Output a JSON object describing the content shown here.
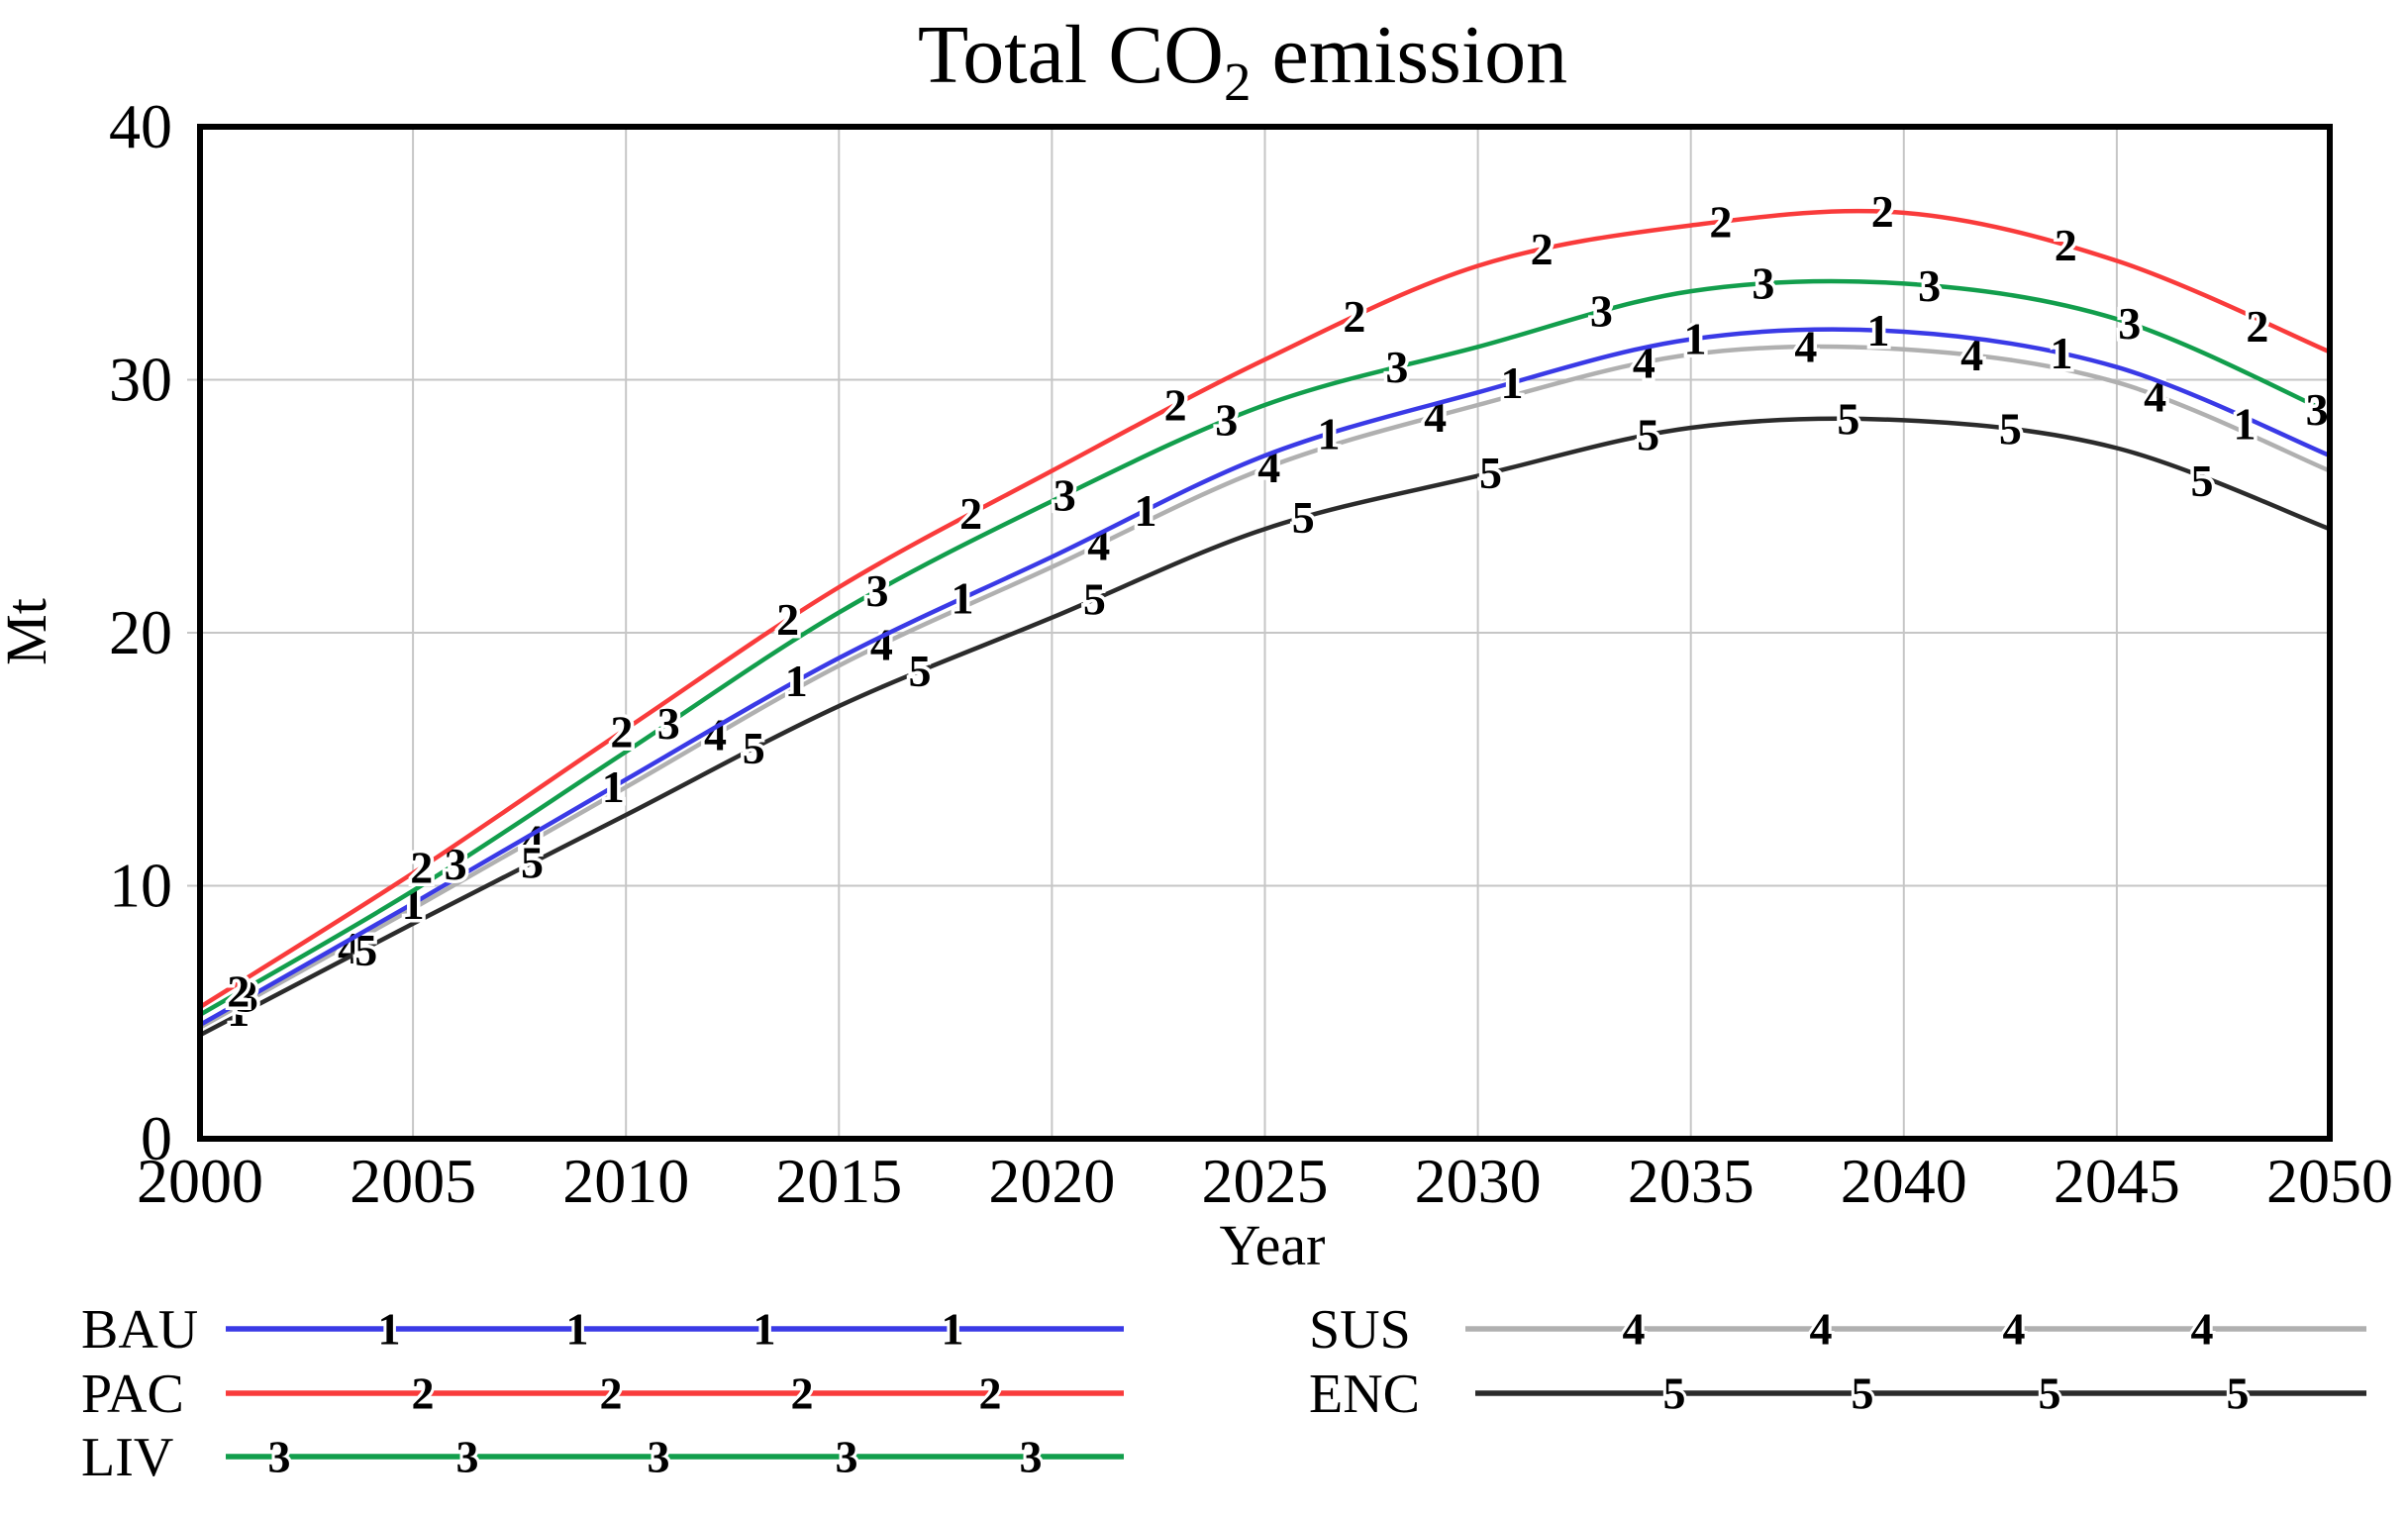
{
  "title": {
    "prefix": "Total CO",
    "sub": "2",
    "suffix": " emission"
  },
  "axes": {
    "ylabel": "Mt",
    "xlabel": "Year",
    "yticks": [
      0,
      10,
      20,
      30,
      40
    ],
    "xticks": [
      2000,
      2005,
      2010,
      2015,
      2020,
      2025,
      2030,
      2035,
      2040,
      2045,
      2050
    ]
  },
  "colors": {
    "grid": "#c6c6c6",
    "frame": "#000000",
    "background": "#ffffff"
  },
  "chart_data": {
    "type": "line",
    "title": "Total CO2 emission",
    "xlabel": "Year",
    "ylabel": "Mt",
    "xlim": [
      2000,
      2050
    ],
    "ylim": [
      0,
      40
    ],
    "grid": true,
    "legend_position": "bottom",
    "x": [
      2000,
      2005,
      2010,
      2015,
      2020,
      2025,
      2030,
      2035,
      2040,
      2045,
      2050
    ],
    "series": [
      {
        "name": "BAU",
        "marker": "1",
        "color": "#3a3ae6",
        "values": [
          4.5,
          9.3,
          14.2,
          19.0,
          23.0,
          27.0,
          29.5,
          31.6,
          31.9,
          30.5,
          27.0
        ],
        "marker_years": [
          2000.9,
          2005.0,
          2009.7,
          2014.0,
          2017.9,
          2022.2,
          2026.5,
          2030.8,
          2035.1,
          2039.4,
          2043.7,
          2048.0
        ]
      },
      {
        "name": "PAC",
        "marker": "2",
        "color": "#f93b3b",
        "values": [
          5.2,
          10.5,
          16.2,
          21.8,
          26.4,
          30.8,
          34.5,
          36.1,
          36.6,
          34.7,
          31.1
        ],
        "marker_years": [
          2000.9,
          2005.2,
          2009.9,
          2013.8,
          2018.1,
          2022.9,
          2027.1,
          2031.5,
          2035.7,
          2039.5,
          2043.8,
          2048.3
        ]
      },
      {
        "name": "LIV",
        "marker": "3",
        "color": "#129e4c",
        "values": [
          4.9,
          9.8,
          15.3,
          20.8,
          25.2,
          29.0,
          31.3,
          33.5,
          33.8,
          32.4,
          28.7
        ],
        "marker_years": [
          2001.1,
          2006.0,
          2011.0,
          2015.9,
          2020.3,
          2024.1,
          2028.1,
          2032.9,
          2036.7,
          2040.6,
          2045.3,
          2049.7
        ]
      },
      {
        "name": "SUS",
        "marker": "4",
        "color": "#b0b0b0",
        "values": [
          4.4,
          9.1,
          13.9,
          18.7,
          22.6,
          26.5,
          29.0,
          31.0,
          31.2,
          29.9,
          26.4
        ],
        "marker_years": [
          2003.5,
          2007.8,
          2012.1,
          2016.0,
          2021.1,
          2025.1,
          2029.0,
          2033.9,
          2037.7,
          2041.6,
          2045.9
        ]
      },
      {
        "name": "ENC",
        "marker": "5",
        "color": "#2b2b2b",
        "values": [
          4.1,
          8.5,
          12.8,
          17.1,
          20.6,
          24.1,
          26.2,
          28.1,
          28.4,
          27.3,
          24.1
        ],
        "marker_years": [
          2003.9,
          2007.8,
          2013.0,
          2016.9,
          2021.0,
          2025.9,
          2030.3,
          2034.0,
          2038.7,
          2042.5,
          2047.0
        ]
      }
    ]
  },
  "legend": {
    "left_labels": [
      "BAU",
      "PAC",
      "LIV"
    ],
    "right_labels": [
      "SUS",
      "ENC"
    ]
  }
}
